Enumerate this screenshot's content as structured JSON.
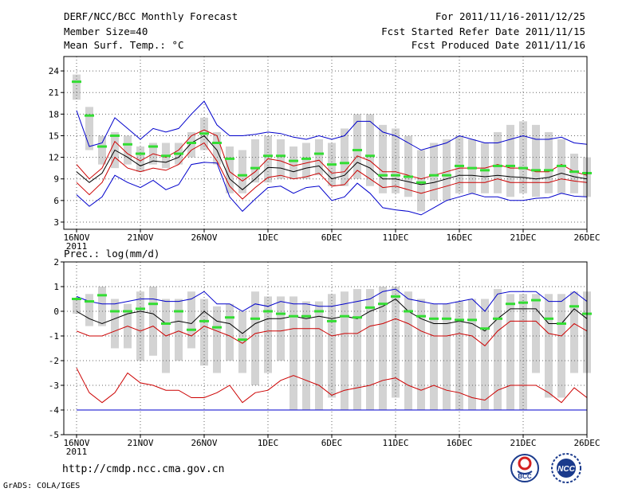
{
  "header": {
    "title": "DERF/NCC/BCC Monthly Forecast",
    "member": "Member Size=40",
    "variable": "Mean Surf. Temp.: °C",
    "period": "For 2011/11/16-2011/12/25",
    "refer": "Fcst Started Refer Date 2011/11/15",
    "produced": "Fcst Produced Date 2011/11/16"
  },
  "footer": {
    "url": "http://cmdp.ncc.cma.gov.cn",
    "grads": "GrADS: COLA/IGES",
    "logo_bcc": "BCC",
    "logo_ncc": "NCC"
  },
  "colors": {
    "max_line": "#0000cc",
    "spread_line": "#cc0000",
    "mean_line": "#000000",
    "box": "#d3d3d3",
    "median": "#33dd33",
    "grid": "#666666"
  },
  "chart_data": [
    {
      "type": "line",
      "title": "Mean Surf. Temp.: °C",
      "ylabel": "°C",
      "ylim": [
        2,
        26
      ],
      "yticks": [
        3,
        6,
        9,
        12,
        15,
        18,
        21,
        24
      ],
      "x_ticks": [
        {
          "day": 0,
          "label": "16NOV",
          "sub": "2011"
        },
        {
          "day": 5,
          "label": "21NOV"
        },
        {
          "day": 10,
          "label": "26NOV"
        },
        {
          "day": 15,
          "label": "1DEC"
        },
        {
          "day": 20,
          "label": "6DEC"
        },
        {
          "day": 25,
          "label": "11DEC"
        },
        {
          "day": 30,
          "label": "16DEC"
        },
        {
          "day": 35,
          "label": "21DEC"
        },
        {
          "day": 40,
          "label": "26DEC"
        }
      ],
      "series": [
        {
          "name": "upper",
          "values": [
            18.5,
            13.5,
            14,
            17.5,
            16,
            14.5,
            16,
            15.5,
            16,
            18,
            19.8,
            16.5,
            15,
            15,
            15.2,
            15.5,
            15.3,
            14.8,
            14.5,
            15,
            14.5,
            15,
            17,
            17,
            15.5,
            15,
            14,
            13,
            13.5,
            14,
            15,
            14.5,
            14,
            14,
            14.5,
            15,
            14.5,
            14.5,
            14.8,
            14,
            13.8
          ]
        },
        {
          "name": "upper_spread",
          "values": [
            11,
            9,
            10.5,
            14.2,
            12.5,
            11.5,
            12.5,
            12,
            13,
            15,
            15.8,
            15,
            10,
            8.7,
            10,
            11.8,
            11.5,
            10.8,
            11.2,
            11.6,
            9.8,
            10,
            12.2,
            11.5,
            10,
            10,
            9.5,
            9,
            9.5,
            10,
            10.5,
            10.5,
            10.5,
            11,
            10.5,
            10.5,
            10,
            10,
            11,
            10,
            9.5
          ]
        },
        {
          "name": "mean",
          "values": [
            10,
            8.5,
            9.8,
            13,
            12,
            10.8,
            11.5,
            11.3,
            12,
            14,
            15,
            13,
            9,
            7.5,
            9,
            10.6,
            10.5,
            10,
            10.5,
            10.8,
            9,
            9.5,
            11.3,
            10.5,
            9,
            9,
            8.6,
            8.2,
            8.5,
            9,
            9.5,
            9.5,
            9.3,
            9.5,
            9.3,
            9.2,
            9,
            9.2,
            9.8,
            9.3,
            9
          ]
        },
        {
          "name": "lower_spread",
          "values": [
            8.5,
            6.8,
            8.5,
            12,
            10.5,
            10,
            10.5,
            10.2,
            11,
            13,
            14,
            11.5,
            8,
            6.2,
            7.8,
            9.2,
            9.5,
            9,
            9.3,
            9.8,
            8,
            8.2,
            10.2,
            9,
            7.8,
            8,
            7.5,
            7,
            7.5,
            8,
            8.5,
            8.5,
            8.5,
            9,
            8.5,
            8.5,
            8.5,
            8.5,
            9,
            8.7,
            8.5
          ]
        },
        {
          "name": "lower",
          "values": [
            6.8,
            5.2,
            6.5,
            9.5,
            8.5,
            7.8,
            8.8,
            7.5,
            8.2,
            11,
            11.3,
            11.2,
            6.5,
            4.5,
            6.2,
            7.8,
            8,
            7,
            7.8,
            8,
            6,
            6.5,
            8.4,
            7,
            5,
            4.7,
            4.5,
            4,
            5,
            6,
            6.5,
            7,
            6.5,
            6.5,
            6,
            6,
            6.3,
            6.4,
            7,
            6.6,
            6.5
          ]
        }
      ],
      "box_low": [
        20,
        13,
        11,
        10.5,
        11,
        10,
        11,
        10.5,
        11,
        12,
        13,
        11,
        7,
        7,
        8.5,
        8.5,
        9,
        9,
        9,
        9.5,
        8,
        8,
        9,
        8,
        7,
        7,
        6.5,
        4.5,
        6,
        6,
        7,
        7,
        7,
        7,
        6.5,
        7,
        6.5,
        7,
        7,
        7,
        6.5
      ],
      "box_high": [
        23.5,
        19,
        15,
        15.5,
        15,
        13.5,
        14,
        14,
        14,
        15.5,
        17.5,
        15.5,
        13.5,
        13,
        14.5,
        15,
        14.5,
        13.5,
        14,
        14.5,
        14,
        16,
        18,
        18,
        16.5,
        16,
        15,
        13,
        14,
        14.5,
        15,
        14.5,
        14,
        15.5,
        16.5,
        17,
        16.5,
        15.5,
        14.5,
        12.5,
        12
      ],
      "median": [
        22.5,
        17.8,
        13.5,
        15,
        13.8,
        12.5,
        13.5,
        12.2,
        12.5,
        14,
        15.3,
        14,
        11.8,
        9.5,
        10.5,
        12.2,
        12.2,
        11.5,
        11.8,
        12.5,
        11,
        11.2,
        13,
        12.2,
        9.5,
        9.5,
        9.3,
        8.5,
        9.5,
        9.5,
        10.8,
        10.5,
        10.2,
        10.8,
        10.8,
        10.5,
        10.2,
        10.2,
        10.8,
        10,
        9.8
      ]
    },
    {
      "type": "line",
      "title": "Prec.: log(mm/d)",
      "ylabel": "log(mm/d)",
      "ylim": [
        -5,
        2
      ],
      "yticks": [
        -5,
        -4,
        -3,
        -2,
        -1,
        0,
        1,
        2
      ],
      "x_ticks": [
        {
          "day": 0,
          "label": "16NOV",
          "sub": "2011"
        },
        {
          "day": 5,
          "label": "21NOV"
        },
        {
          "day": 10,
          "label": "26NOV"
        },
        {
          "day": 15,
          "label": "1DEC"
        },
        {
          "day": 20,
          "label": "6DEC"
        },
        {
          "day": 25,
          "label": "11DEC"
        },
        {
          "day": 30,
          "label": "16DEC"
        },
        {
          "day": 35,
          "label": "21DEC"
        },
        {
          "day": 40,
          "label": "26DEC"
        }
      ],
      "series": [
        {
          "name": "upper",
          "values": [
            0.6,
            0.4,
            0.3,
            0.3,
            0.4,
            0.5,
            0.5,
            0.4,
            0.4,
            0.5,
            0.8,
            0.3,
            0.3,
            0,
            0.3,
            0.2,
            0.4,
            0.3,
            0.3,
            0.2,
            0.2,
            0.3,
            0.4,
            0.5,
            0.8,
            0.9,
            0.5,
            0.4,
            0.3,
            0.3,
            0.4,
            0.5,
            0,
            0.7,
            0.8,
            0.8,
            0.8,
            0.4,
            0.4,
            0.8,
            0.4
          ]
        },
        {
          "name": "mean",
          "values": [
            0,
            -0.3,
            -0.5,
            -0.3,
            -0.1,
            0,
            -0.1,
            -0.5,
            -0.4,
            -0.5,
            0,
            -0.4,
            -0.5,
            -0.9,
            -0.5,
            -0.3,
            -0.3,
            -0.2,
            -0.3,
            -0.2,
            -0.3,
            -0.2,
            -0.3,
            0,
            0.2,
            0.5,
            0,
            -0.3,
            -0.5,
            -0.5,
            -0.4,
            -0.5,
            -0.8,
            -0.3,
            0.1,
            0.1,
            0.1,
            -0.5,
            -0.5,
            0.1,
            -0.3
          ]
        },
        {
          "name": "upper_spread",
          "values": [
            -0.8,
            -1,
            -1,
            -0.8,
            -0.6,
            -0.8,
            -0.6,
            -1,
            -0.8,
            -1,
            -0.6,
            -0.8,
            -1,
            -1.3,
            -0.9,
            -0.8,
            -0.8,
            -0.7,
            -0.7,
            -0.7,
            -1,
            -0.9,
            -0.9,
            -0.6,
            -0.5,
            -0.3,
            -0.5,
            -0.8,
            -1,
            -1,
            -0.9,
            -1,
            -1.4,
            -0.8,
            -0.4,
            -0.4,
            -0.4,
            -0.9,
            -1,
            -0.5,
            -0.8
          ]
        },
        {
          "name": "lower_spread",
          "values": [
            -2.3,
            -3.3,
            -3.7,
            -3.3,
            -2.5,
            -2.9,
            -3,
            -3.2,
            -3.2,
            -3.5,
            -3.5,
            -3.3,
            -3,
            -3.7,
            -3.3,
            -3.2,
            -2.8,
            -2.6,
            -2.8,
            -3,
            -3.4,
            -3.2,
            -3.1,
            -3,
            -2.8,
            -2.7,
            -3,
            -3.2,
            -3,
            -3.2,
            -3.3,
            -3.5,
            -3.6,
            -3.2,
            -3,
            -3,
            -3,
            -3.3,
            -3.7,
            -3.1,
            -3.5
          ]
        },
        {
          "name": "lower",
          "values": [
            -4,
            -4,
            -4,
            -4,
            -4,
            -4,
            -4,
            -4,
            -4,
            -4,
            -4,
            -4,
            -4,
            -4,
            -4,
            -4,
            -4,
            -4,
            -4,
            -4,
            -4,
            -4,
            -4,
            -4,
            -4,
            -4,
            -4,
            -4,
            -4,
            -4,
            -4,
            -4,
            -4,
            -4,
            -4,
            -4,
            -4,
            -4,
            -4,
            -4,
            -4
          ]
        }
      ],
      "box_low": [
        -0.1,
        -0.6,
        -0.6,
        -1.5,
        -1.5,
        -2,
        -1.8,
        -2.5,
        -2,
        -1.5,
        -2.2,
        -2.5,
        -2,
        -2.5,
        -3,
        -2.5,
        -2,
        -4,
        -4,
        -4,
        -3.5,
        -4,
        -4,
        -4,
        -4,
        -3.5,
        -4,
        -4,
        -4,
        -4,
        -4,
        -4,
        -4,
        -4,
        -4,
        -4,
        -2.5,
        -3.5,
        -3.5,
        -2.5,
        -2.5
      ],
      "box_high": [
        0.5,
        0.7,
        1,
        0.5,
        0.3,
        0.8,
        1,
        0.5,
        0.5,
        0.8,
        0.5,
        0.2,
        0.3,
        0,
        0.8,
        0.6,
        0.6,
        0.6,
        0.4,
        0.4,
        0.7,
        0.8,
        0.9,
        0.9,
        1,
        1,
        0.8,
        0.5,
        0.3,
        0.3,
        0.4,
        0.5,
        0.5,
        0.9,
        0.7,
        0.7,
        0.7,
        0.7,
        0.7,
        0.8,
        0.8
      ],
      "median": [
        0.5,
        0.4,
        0.65,
        0,
        0,
        0.1,
        0.3,
        -0.5,
        0,
        -0.75,
        -0.4,
        -0.65,
        -0.25,
        -1.15,
        -0.3,
        0,
        -0.1,
        -0.2,
        -0.2,
        0,
        -0.4,
        -0.2,
        -0.25,
        0.15,
        0.3,
        0.6,
        0,
        -0.2,
        -0.3,
        -0.3,
        -0.35,
        -0.35,
        -0.7,
        -0.3,
        0.3,
        0.35,
        0.45,
        -0.3,
        -0.5,
        0.2,
        -0.1
      ]
    }
  ]
}
